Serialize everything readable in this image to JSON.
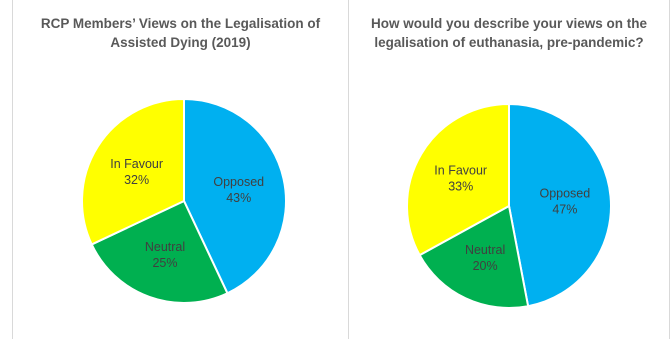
{
  "chart_data": [
    {
      "type": "pie",
      "title": "RCP Members’ Views on the Legalisation of Assisted Dying (2019)",
      "slices": [
        {
          "label": "Opposed",
          "value": 43,
          "display": "43%",
          "color": "#00B0F0"
        },
        {
          "label": "Neutral",
          "value": 25,
          "display": "25%",
          "color": "#00B050"
        },
        {
          "label": "In Favour",
          "value": 32,
          "display": "32%",
          "color": "#FFFF00"
        }
      ]
    },
    {
      "type": "pie",
      "title": "How would you describe your views on the legalisation of euthanasia, pre-pandemic?",
      "slices": [
        {
          "label": "Opposed",
          "value": 47,
          "display": "47%",
          "color": "#00B0F0"
        },
        {
          "label": "Neutral",
          "value": 20,
          "display": "20%",
          "color": "#00B050"
        },
        {
          "label": "In Favour",
          "value": 33,
          "display": "33%",
          "color": "#FFFF00"
        }
      ]
    }
  ]
}
